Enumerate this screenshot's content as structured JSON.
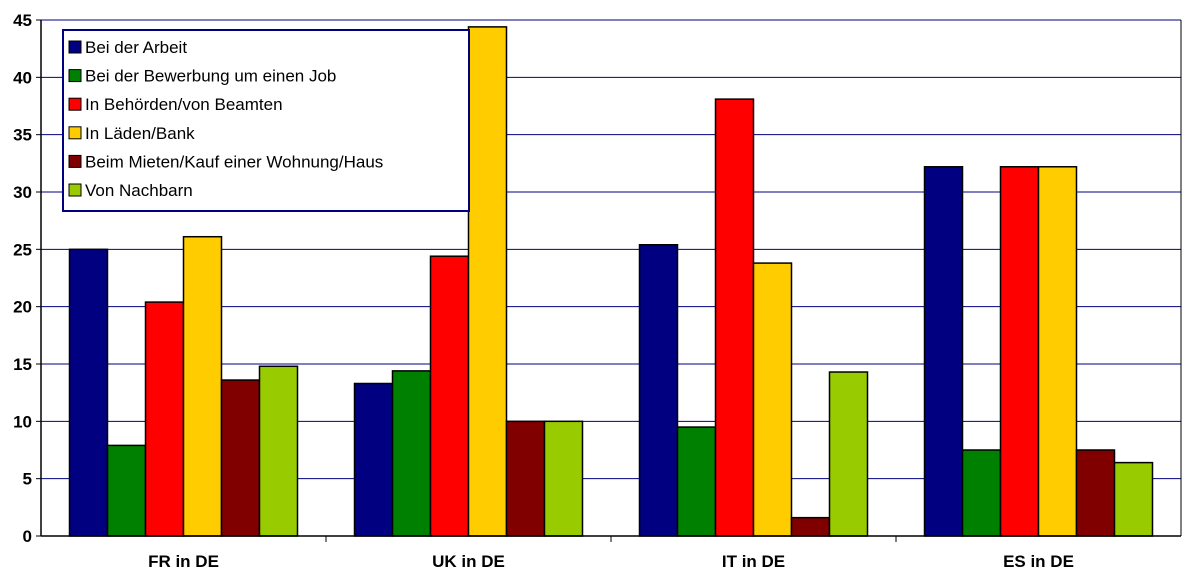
{
  "chart_data": {
    "type": "bar",
    "categories": [
      "FR in DE",
      "UK in DE",
      "IT in DE",
      "ES in DE"
    ],
    "series": [
      {
        "name": "Bei der Arbeit",
        "color": "#000080",
        "values": [
          25.0,
          13.3,
          25.4,
          32.2
        ]
      },
      {
        "name": "Bei der Bewerbung um einen Job",
        "color": "#008000",
        "values": [
          7.9,
          14.4,
          9.5,
          7.5
        ]
      },
      {
        "name": "In Behörden/von Beamten",
        "color": "#ff0000",
        "values": [
          20.4,
          24.4,
          38.1,
          32.2
        ]
      },
      {
        "name": "In Läden/Bank",
        "color": "#ffcc00",
        "values": [
          26.1,
          44.4,
          23.8,
          32.2
        ]
      },
      {
        "name": "Beim Mieten/Kauf einer Wohnung/Haus",
        "color": "#800000",
        "values": [
          13.6,
          10.0,
          1.6,
          7.5
        ]
      },
      {
        "name": "Von Nachbarn",
        "color": "#99cc00",
        "values": [
          14.8,
          10.0,
          14.3,
          6.4
        ]
      }
    ],
    "yticks": [
      "0",
      "5",
      "10",
      "15",
      "20",
      "25",
      "30",
      "35",
      "40",
      "45"
    ],
    "ylim": [
      0,
      45
    ],
    "grid": true,
    "legend_position": "top-left",
    "title": "",
    "xlabel": "",
    "ylabel": ""
  }
}
